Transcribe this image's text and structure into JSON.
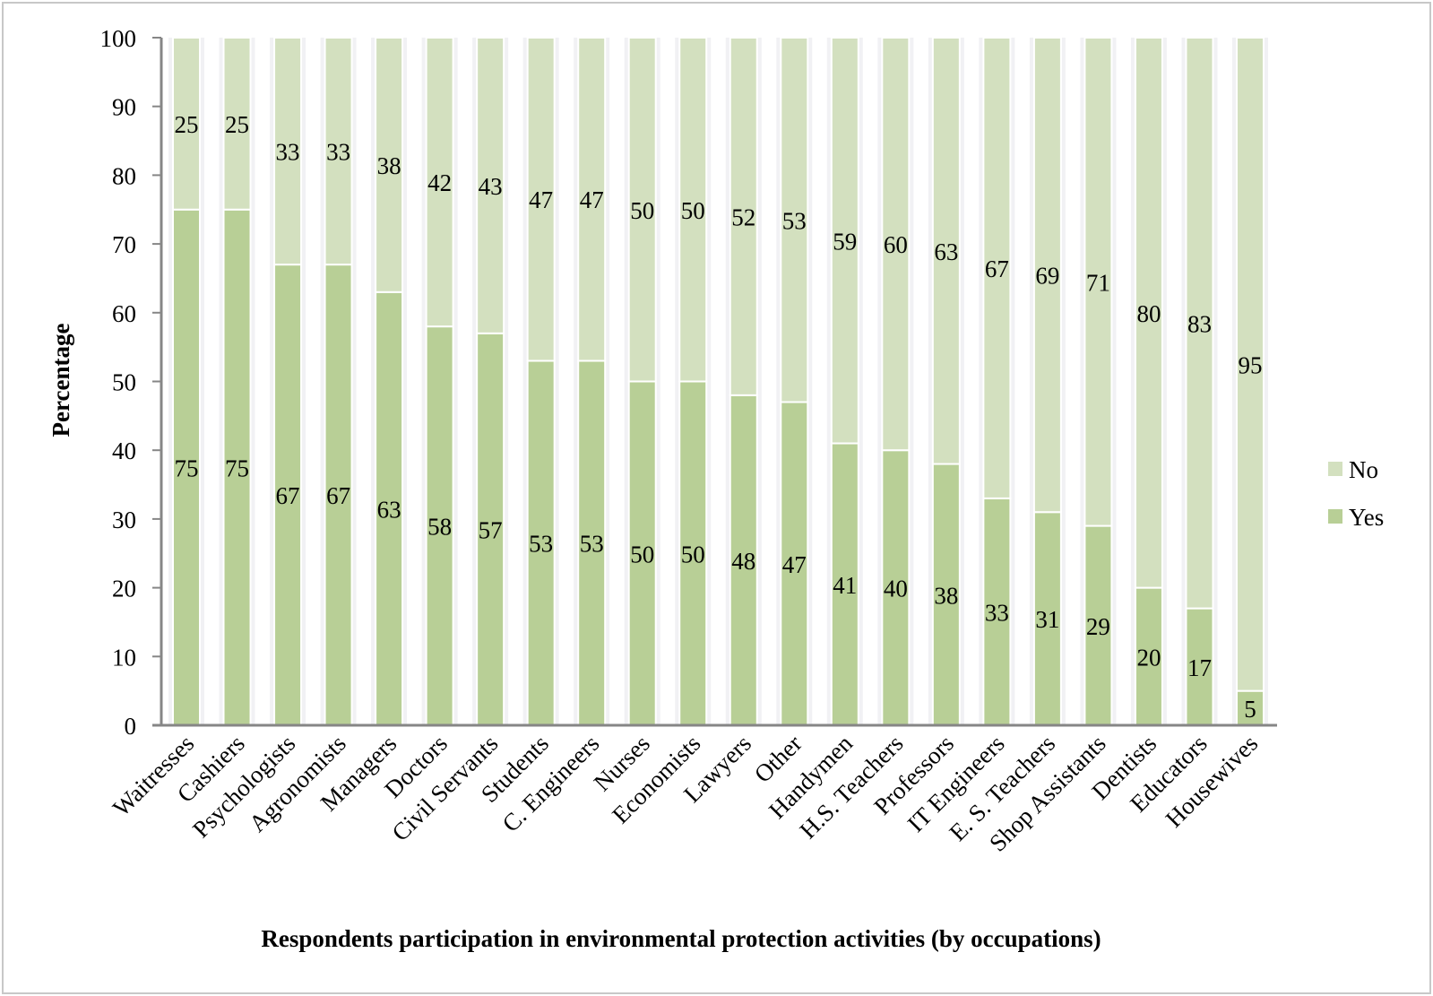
{
  "chart_data": {
    "type": "bar",
    "stacked": true,
    "title": "",
    "xlabel": "Respondents participation in environmental protection activities (by occupations)",
    "ylabel": "Percentage",
    "ylim": [
      0,
      100
    ],
    "yticks": [
      0,
      10,
      20,
      30,
      40,
      50,
      60,
      70,
      80,
      90,
      100
    ],
    "grid": false,
    "legend_position": "right",
    "categories": [
      "Waitresses",
      "Cashiers",
      "Psychologists",
      "Agronomists",
      "Managers",
      "Doctors",
      "Civil Servants",
      "Students",
      "C. Engineers",
      "Nurses",
      "Economists",
      "Lawyers",
      "Other",
      "Handymen",
      "H.S. Teachers",
      "Professors",
      "IT Engineers",
      "E. S. Teachers",
      "Shop Assistants",
      "Dentists",
      "Educators",
      "Housewives"
    ],
    "series": [
      {
        "name": "Yes",
        "color": "#b8cf96",
        "values": [
          75,
          75,
          67,
          67,
          63,
          58,
          57,
          53,
          53,
          50,
          50,
          48,
          47,
          41,
          40,
          38,
          33,
          31,
          29,
          20,
          17,
          5
        ]
      },
      {
        "name": "No",
        "color": "#d3e0bf",
        "values": [
          25,
          25,
          33,
          33,
          38,
          42,
          43,
          47,
          47,
          50,
          50,
          52,
          53,
          59,
          60,
          63,
          67,
          69,
          71,
          80,
          83,
          95
        ]
      }
    ],
    "legend": [
      "No",
      "Yes"
    ]
  }
}
